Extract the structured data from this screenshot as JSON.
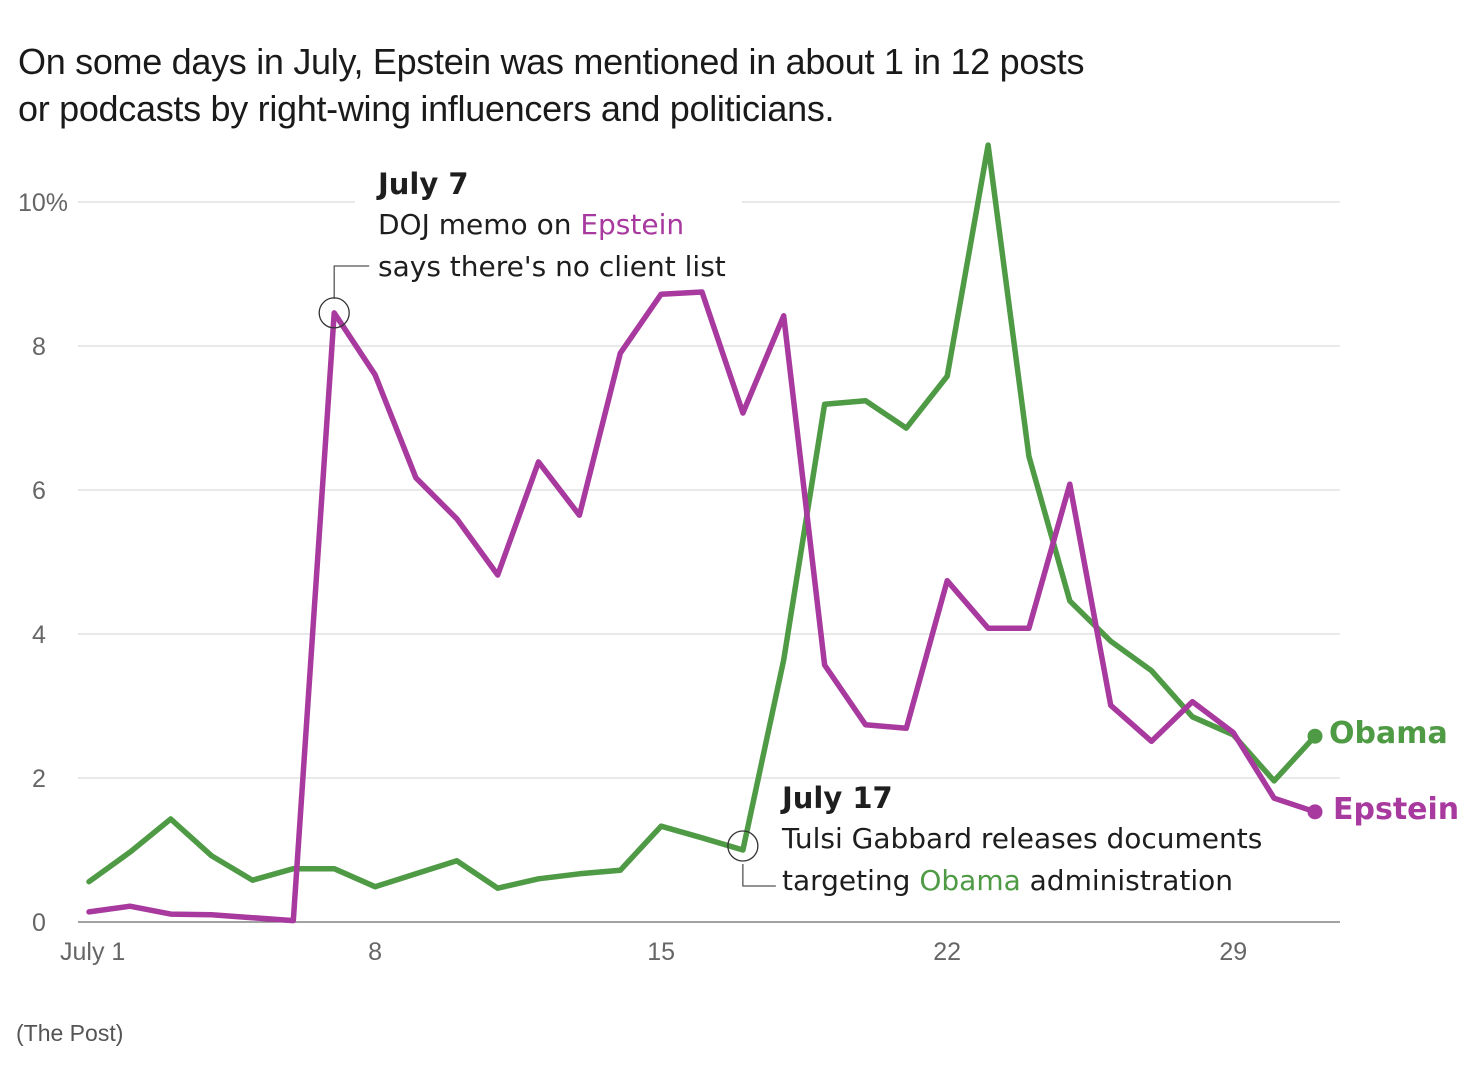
{
  "title": {
    "line1": "On some days in July, Epstein was mentioned in about 1 in 12 posts",
    "line2": "or podcasts by right-wing influencers and politicians."
  },
  "source": "(The Post)",
  "annotations": [
    {
      "date": "July 7",
      "line1_pre": "DOJ memo on ",
      "line1_highlight": "Epstein",
      "line2": "says there's no client list",
      "series": "Epstein",
      "day": 7
    },
    {
      "date": "July 17",
      "line1": "Tulsi Gabbard releases documents",
      "line2_pre": "targeting ",
      "line2_highlight": "Obama",
      "line2_post": " administration",
      "series": "Obama",
      "day": 17
    }
  ],
  "colors": {
    "epstein": "#a8399f",
    "obama": "#4f9a45",
    "grid": "#dcdcdc",
    "axis": "#6b6b6b",
    "tick_text": "#666666"
  },
  "chart_data": {
    "type": "line",
    "title": "On some days in July, Epstein was mentioned in about 1 in 12 posts or podcasts by right-wing influencers and politicians.",
    "xlabel": "",
    "ylabel": "",
    "x": [
      1,
      2,
      3,
      4,
      5,
      6,
      7,
      8,
      9,
      10,
      11,
      12,
      13,
      14,
      15,
      16,
      17,
      18,
      19,
      20,
      21,
      22,
      23,
      24,
      25,
      26,
      27,
      28,
      29,
      30,
      31
    ],
    "x_ticks": [
      {
        "value": 1,
        "label": "July 1"
      },
      {
        "value": 8,
        "label": "8"
      },
      {
        "value": 15,
        "label": "15"
      },
      {
        "value": 22,
        "label": "22"
      },
      {
        "value": 29,
        "label": "29"
      }
    ],
    "y_ticks": [
      {
        "value": 0,
        "label": "0"
      },
      {
        "value": 2,
        "label": "2"
      },
      {
        "value": 4,
        "label": "4"
      },
      {
        "value": 6,
        "label": "6"
      },
      {
        "value": 8,
        "label": "8"
      },
      {
        "value": 10,
        "label": "10%"
      }
    ],
    "ylim": [
      0,
      10.8
    ],
    "xlim": [
      1,
      31
    ],
    "grid": true,
    "legend": "end-of-line labels (right)",
    "series": [
      {
        "name": "Epstein",
        "color": "#a8399f",
        "values": [
          0.14,
          0.22,
          0.11,
          0.1,
          0.06,
          0.02,
          8.46,
          7.6,
          6.17,
          5.6,
          4.82,
          6.39,
          5.65,
          7.9,
          8.72,
          8.75,
          7.07,
          8.42,
          3.57,
          2.74,
          2.69,
          4.74,
          4.08,
          4.08,
          6.08,
          3.01,
          2.51,
          3.06,
          2.63,
          1.72,
          1.53
        ]
      },
      {
        "name": "Obama",
        "color": "#4f9a45",
        "values": [
          0.56,
          0.97,
          1.43,
          0.92,
          0.58,
          0.74,
          0.74,
          0.49,
          0.67,
          0.85,
          0.47,
          0.6,
          0.67,
          0.72,
          1.33,
          1.17,
          1.0,
          3.64,
          7.19,
          7.24,
          6.86,
          7.58,
          10.79,
          6.47,
          4.46,
          3.9,
          3.49,
          2.85,
          2.6,
          1.96,
          2.58
        ]
      }
    ]
  }
}
